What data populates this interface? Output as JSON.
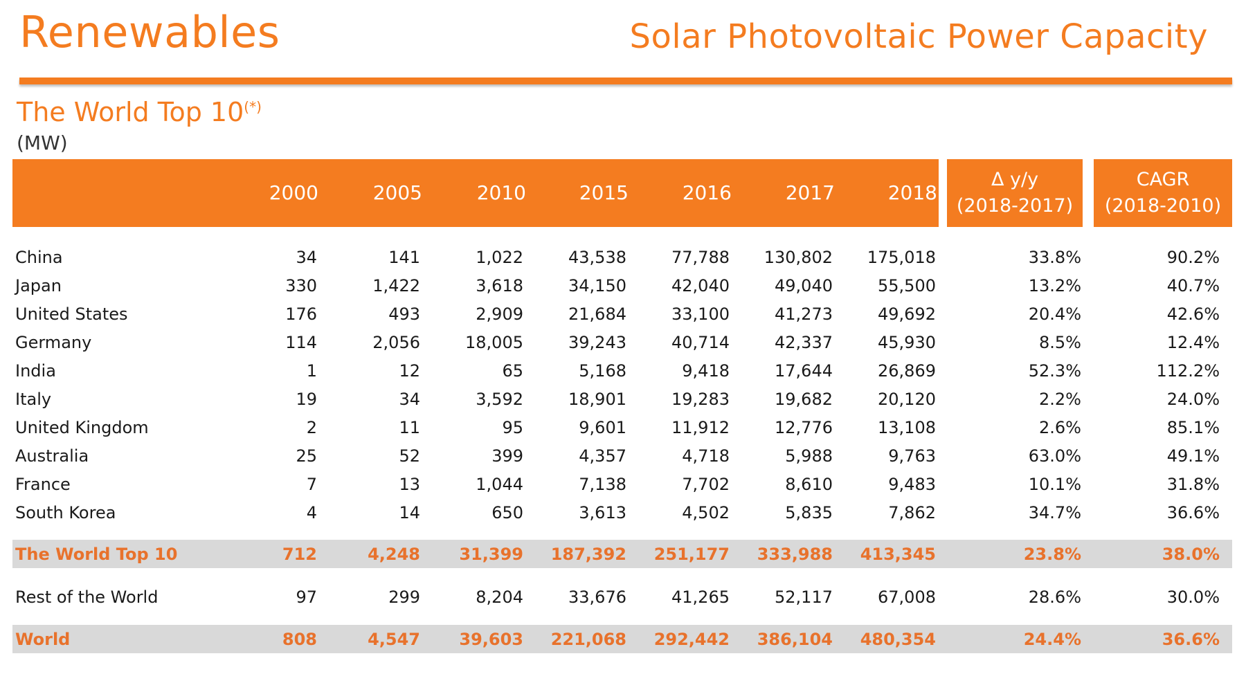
{
  "header": {
    "brand": "Renewables",
    "subtitle": "Solar Photovoltaic Power Capacity",
    "section_title": "The World Top 10",
    "section_note": "(*)",
    "unit": "(MW)"
  },
  "columns": {
    "years": [
      "2000",
      "2005",
      "2010",
      "2015",
      "2016",
      "2017",
      "2018"
    ],
    "delta_line1": "Δ y/y",
    "delta_line2": "(2018-2017)",
    "cagr_line1": "CAGR",
    "cagr_line2": "(2018-2010)"
  },
  "rows": [
    {
      "name": "China",
      "values": [
        "34",
        "141",
        "1,022",
        "43,538",
        "77,788",
        "130,802",
        "175,018"
      ],
      "delta": "33.8%",
      "cagr": "90.2%"
    },
    {
      "name": "Japan",
      "values": [
        "330",
        "1,422",
        "3,618",
        "34,150",
        "42,040",
        "49,040",
        "55,500"
      ],
      "delta": "13.2%",
      "cagr": "40.7%"
    },
    {
      "name": "United States",
      "values": [
        "176",
        "493",
        "2,909",
        "21,684",
        "33,100",
        "41,273",
        "49,692"
      ],
      "delta": "20.4%",
      "cagr": "42.6%"
    },
    {
      "name": "Germany",
      "values": [
        "114",
        "2,056",
        "18,005",
        "39,243",
        "40,714",
        "42,337",
        "45,930"
      ],
      "delta": "8.5%",
      "cagr": "12.4%"
    },
    {
      "name": "India",
      "values": [
        "1",
        "12",
        "65",
        "5,168",
        "9,418",
        "17,644",
        "26,869"
      ],
      "delta": "52.3%",
      "cagr": "112.2%"
    },
    {
      "name": "Italy",
      "values": [
        "19",
        "34",
        "3,592",
        "18,901",
        "19,283",
        "19,682",
        "20,120"
      ],
      "delta": "2.2%",
      "cagr": "24.0%"
    },
    {
      "name": "United Kingdom",
      "values": [
        "2",
        "11",
        "95",
        "9,601",
        "11,912",
        "12,776",
        "13,108"
      ],
      "delta": "2.6%",
      "cagr": "85.1%"
    },
    {
      "name": "Australia",
      "values": [
        "25",
        "52",
        "399",
        "4,357",
        "4,718",
        "5,988",
        "9,763"
      ],
      "delta": "63.0%",
      "cagr": "49.1%"
    },
    {
      "name": "France",
      "values": [
        "7",
        "13",
        "1,044",
        "7,138",
        "7,702",
        "8,610",
        "9,483"
      ],
      "delta": "10.1%",
      "cagr": "31.8%"
    },
    {
      "name": "South Korea",
      "values": [
        "4",
        "14",
        "650",
        "3,613",
        "4,502",
        "5,835",
        "7,862"
      ],
      "delta": "34.7%",
      "cagr": "36.6%"
    }
  ],
  "top10_total": {
    "name": "The World Top 10",
    "values": [
      "712",
      "4,248",
      "31,399",
      "187,392",
      "251,177",
      "333,988",
      "413,345"
    ],
    "delta": "23.8%",
    "cagr": "38.0%"
  },
  "rest_of_world": {
    "name": "Rest of the World",
    "values": [
      "97",
      "299",
      "8,204",
      "33,676",
      "41,265",
      "52,117",
      "67,008"
    ],
    "delta": "28.6%",
    "cagr": "30.0%"
  },
  "world_total": {
    "name": "World",
    "values": [
      "808",
      "4,547",
      "39,603",
      "221,068",
      "292,442",
      "386,104",
      "480,354"
    ],
    "delta": "24.4%",
    "cagr": "36.6%"
  }
}
